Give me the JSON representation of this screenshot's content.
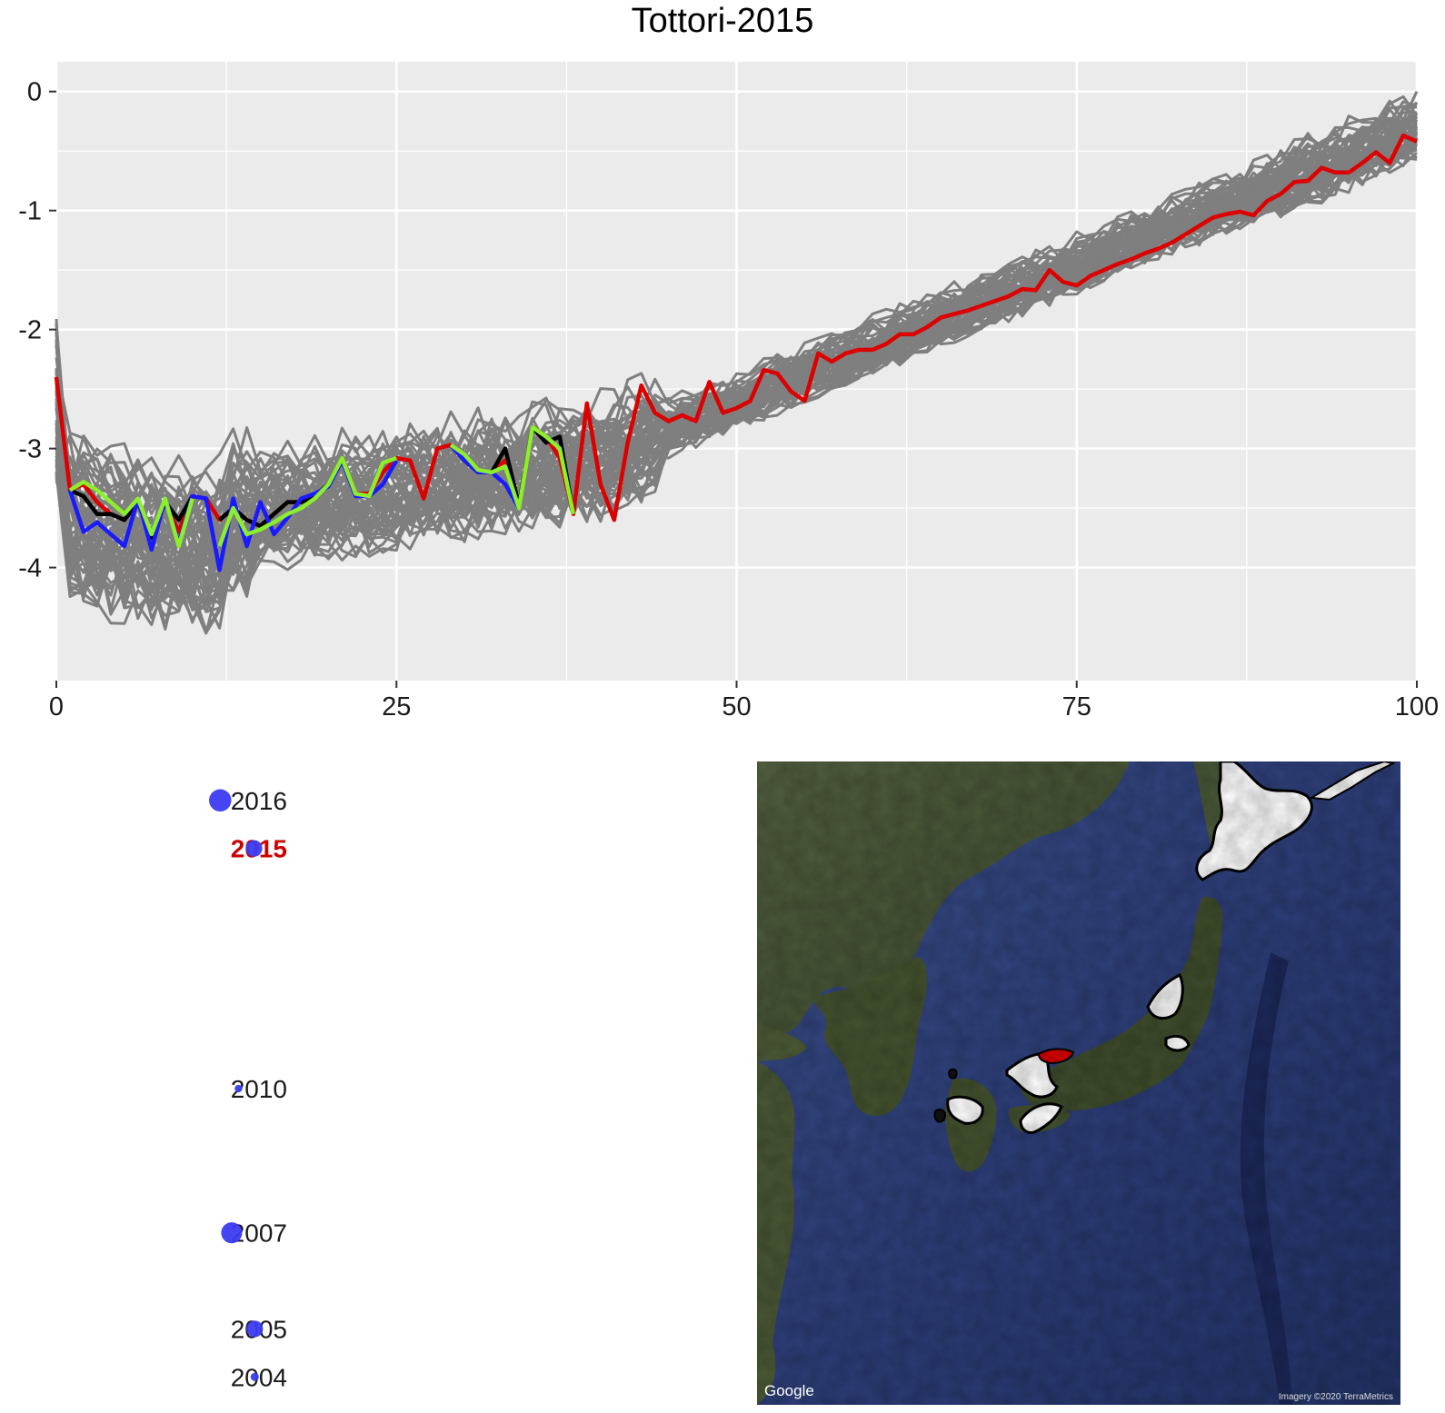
{
  "colors": {
    "panel_bg": "#EBEBEB",
    "grid": "#FFFFFF",
    "sim_lines": "#7F7F7F",
    "highlight_red": "#DD0000",
    "highlight_black": "#000000",
    "highlight_blue": "#1A1AFF",
    "highlight_green": "#8BEF2B",
    "dot_fill": "#3B3BF0",
    "year_highlight": "#CC0000"
  },
  "chart_data": [
    {
      "type": "line",
      "title": "Tottori-2015",
      "xlabel": "",
      "ylabel": "",
      "xlim": [
        0,
        100
      ],
      "ylim": [
        -4.95,
        0.25
      ],
      "x_ticks": [
        0,
        25,
        50,
        75,
        100
      ],
      "y_ticks": [
        0,
        -1,
        -2,
        -3,
        -4
      ],
      "x_tick_labels": [
        "0",
        "25",
        "50",
        "75",
        "100"
      ],
      "y_tick_labels": [
        "0",
        "-1",
        "-2",
        "-3",
        "-4"
      ],
      "grid": true,
      "background_series": {
        "description_count": 60,
        "color": "gray"
      },
      "series": [
        {
          "color": "red",
          "x": [
            0,
            1,
            2,
            3,
            4,
            5,
            6,
            7,
            8,
            9,
            10,
            11,
            12,
            13,
            14,
            15,
            16,
            17,
            18,
            19,
            20,
            21,
            22,
            23,
            24,
            25,
            26,
            27,
            28,
            29,
            30,
            31,
            32,
            33,
            34,
            35,
            36,
            37,
            38,
            39,
            40,
            41,
            42,
            43,
            44,
            45,
            46,
            47,
            48,
            49,
            50,
            51,
            52,
            53,
            54,
            55,
            56,
            57,
            58,
            59,
            60,
            61,
            62,
            63,
            64,
            65,
            66,
            67,
            68,
            69,
            70,
            71,
            72,
            73,
            74,
            75,
            76,
            77,
            78,
            79,
            80,
            81,
            82,
            83,
            84,
            85,
            86,
            87,
            88,
            89,
            90,
            91,
            92,
            93,
            94,
            95,
            96,
            97,
            98,
            99,
            100
          ],
          "y": [
            -2.4,
            -3.35,
            -3.3,
            -3.45,
            -3.55,
            -3.6,
            -3.45,
            -3.75,
            -3.45,
            -3.7,
            -3.4,
            -3.42,
            -3.6,
            -3.5,
            -3.6,
            -3.65,
            -3.55,
            -3.45,
            -3.45,
            -3.4,
            -3.3,
            -3.08,
            -3.38,
            -3.38,
            -3.2,
            -3.08,
            -3.1,
            -3.42,
            -3.0,
            -2.97,
            -3.1,
            -3.2,
            -3.2,
            -3.1,
            -3.48,
            -2.82,
            -2.9,
            -3.08,
            -3.55,
            -2.62,
            -3.3,
            -3.6,
            -2.95,
            -2.47,
            -2.7,
            -2.77,
            -2.72,
            -2.77,
            -2.44,
            -2.7,
            -2.66,
            -2.6,
            -2.34,
            -2.37,
            -2.52,
            -2.6,
            -2.2,
            -2.27,
            -2.2,
            -2.17,
            -2.17,
            -2.12,
            -2.04,
            -2.04,
            -1.98,
            -1.9,
            -1.87,
            -1.84,
            -1.8,
            -1.76,
            -1.72,
            -1.66,
            -1.67,
            -1.5,
            -1.6,
            -1.63,
            -1.55,
            -1.5,
            -1.45,
            -1.41,
            -1.36,
            -1.32,
            -1.27,
            -1.2,
            -1.13,
            -1.06,
            -1.03,
            -1.01,
            -1.04,
            -0.92,
            -0.86,
            -0.76,
            -0.75,
            -0.64,
            -0.68,
            -0.68,
            -0.6,
            -0.51,
            -0.6,
            -0.37,
            -0.42
          ]
        },
        {
          "color": "black",
          "x": [
            1,
            2,
            3,
            4,
            5,
            6,
            7,
            8,
            9,
            10,
            12,
            13,
            14,
            15,
            16,
            17,
            18,
            19,
            20,
            21,
            29,
            30,
            31,
            32,
            33,
            34,
            35,
            36,
            37,
            38
          ],
          "y": [
            -3.35,
            -3.4,
            -3.55,
            -3.55,
            -3.6,
            -3.45,
            -3.75,
            -3.45,
            -3.6,
            -3.4,
            -3.6,
            -3.5,
            -3.6,
            -3.65,
            -3.55,
            -3.45,
            -3.45,
            -3.4,
            -3.3,
            -3.08,
            -2.97,
            -3.1,
            -3.2,
            -3.2,
            -3.0,
            -3.48,
            -2.82,
            -2.95,
            -2.9,
            -3.55
          ]
        },
        {
          "color": "blue",
          "x": [
            1,
            2,
            3,
            4,
            5,
            6,
            7,
            8,
            9,
            10,
            11,
            12,
            13,
            14,
            15,
            16,
            17,
            18,
            19,
            20,
            21,
            22,
            23,
            24,
            25,
            29,
            30,
            31,
            32,
            33,
            34
          ],
          "y": [
            -3.35,
            -3.7,
            -3.62,
            -3.72,
            -3.82,
            -3.42,
            -3.85,
            -3.42,
            -3.8,
            -3.4,
            -3.42,
            -4.02,
            -3.42,
            -3.82,
            -3.45,
            -3.72,
            -3.58,
            -3.42,
            -3.38,
            -3.32,
            -3.1,
            -3.4,
            -3.4,
            -3.3,
            -3.1,
            -2.97,
            -3.1,
            -3.2,
            -3.2,
            -3.3,
            -3.5
          ]
        },
        {
          "color": "green",
          "x": [
            1,
            2,
            3,
            4,
            5,
            6,
            7,
            8,
            9,
            10,
            12,
            13,
            14,
            15,
            16,
            17,
            18,
            19,
            20,
            21,
            22,
            23,
            24,
            25,
            29,
            30,
            31,
            32,
            33,
            34,
            35,
            36,
            37,
            38
          ],
          "y": [
            -3.35,
            -3.28,
            -3.35,
            -3.45,
            -3.55,
            -3.42,
            -3.72,
            -3.42,
            -3.82,
            -3.42,
            -3.82,
            -3.5,
            -3.72,
            -3.68,
            -3.62,
            -3.55,
            -3.5,
            -3.42,
            -3.3,
            -3.08,
            -3.38,
            -3.4,
            -3.12,
            -3.08,
            -2.97,
            -3.05,
            -3.18,
            -3.2,
            -3.15,
            -3.5,
            -2.82,
            -2.9,
            -3.0,
            -3.55
          ]
        }
      ]
    },
    {
      "type": "scatter",
      "categories": [
        "2016",
        "2015",
        "2010",
        "2007",
        "2005",
        "2004"
      ],
      "highlighted_category": "2015",
      "x": [
        22.5,
        27.5,
        25.2,
        24.2,
        27.6,
        27.6
      ],
      "sizes": [
        3.5,
        2.6,
        1.2,
        3.3,
        2.6,
        1.3
      ],
      "xlim": [
        -10,
        100
      ],
      "y_year_range": [
        2003.25,
        2017.15
      ]
    }
  ],
  "map": {
    "provider_logo": "Google",
    "attribution": "Imagery ©2020 TerraMetrics"
  }
}
